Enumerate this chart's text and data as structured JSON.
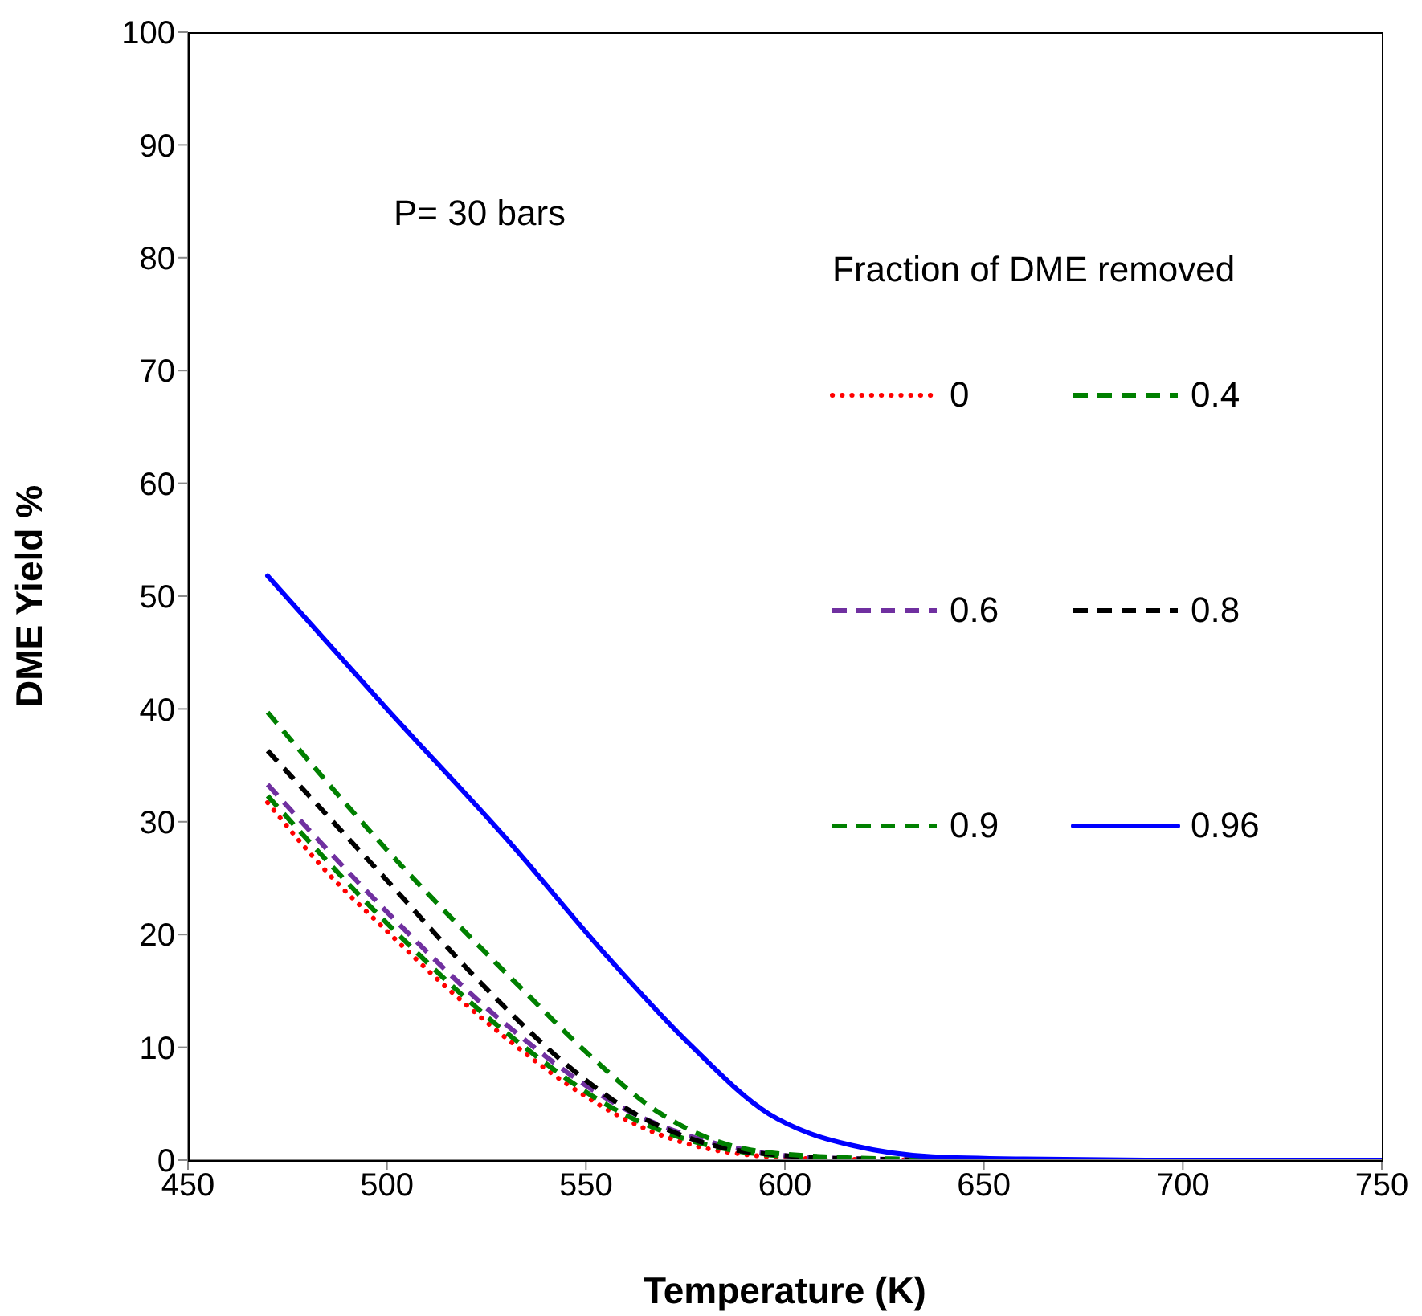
{
  "chart_data": {
    "type": "line",
    "xlabel": "Temperature (K)",
    "ylabel": "DME Yield %",
    "legend_title": "Fraction of DME removed",
    "annotations": [
      "P= 30 bars"
    ],
    "xlim": [
      450,
      750
    ],
    "xticks": [
      450,
      500,
      550,
      600,
      650,
      700,
      750
    ],
    "ylim": [
      0,
      100
    ],
    "yticks": [
      0,
      10,
      20,
      30,
      40,
      50,
      60,
      70,
      80,
      90,
      100
    ],
    "grid": false,
    "legend": "right",
    "marker": "none",
    "series": [
      {
        "name": "0",
        "color": "#ff0000",
        "line_style": "dotted",
        "x": [
          470,
          485,
          500,
          515,
          530,
          545,
          560,
          575,
          590,
          610,
          650,
          750
        ],
        "values": [
          31.7,
          25.5,
          20.3,
          15.3,
          10.8,
          6.8,
          3.6,
          1.5,
          0.5,
          0.1,
          0,
          0
        ]
      },
      {
        "name": "0.4",
        "color": "#008000",
        "line_style": "dashed",
        "x": [
          470,
          500,
          530,
          560,
          590,
          610,
          650,
          750
        ],
        "values": [
          32.3,
          21.0,
          11.3,
          4.0,
          0.7,
          0.2,
          0,
          0
        ]
      },
      {
        "name": "0.6",
        "color": "#7030a0",
        "line_style": "dashed",
        "x": [
          470,
          500,
          530,
          560,
          590,
          610,
          650,
          750
        ],
        "values": [
          33.3,
          22.0,
          12.0,
          4.5,
          0.9,
          0.2,
          0,
          0
        ]
      },
      {
        "name": "0.8",
        "color": "#000000",
        "line_style": "dashed",
        "x": [
          470,
          500,
          525,
          545,
          560,
          580,
          600,
          620,
          650,
          750
        ],
        "values": [
          36.3,
          24.8,
          15.2,
          8.5,
          4.6,
          1.5,
          0.4,
          0.1,
          0,
          0
        ]
      },
      {
        "name": "0.9",
        "color": "#008000",
        "line_style": "dashed",
        "x": [
          470,
          500,
          535,
          550,
          568,
          590,
          610,
          630,
          660,
          750
        ],
        "values": [
          39.7,
          27.5,
          14.8,
          9.6,
          4.3,
          1.0,
          0.3,
          0.1,
          0,
          0
        ]
      },
      {
        "name": "0.96",
        "color": "#0000ff",
        "line_style": "solid",
        "x": [
          470,
          500,
          530,
          556,
          576,
          596,
          606,
          617,
          637,
          660,
          700,
          750
        ],
        "values": [
          51.8,
          40.0,
          28.5,
          17.8,
          10.3,
          4.1,
          2.4,
          1.3,
          0.3,
          0.1,
          0,
          0
        ]
      }
    ]
  }
}
